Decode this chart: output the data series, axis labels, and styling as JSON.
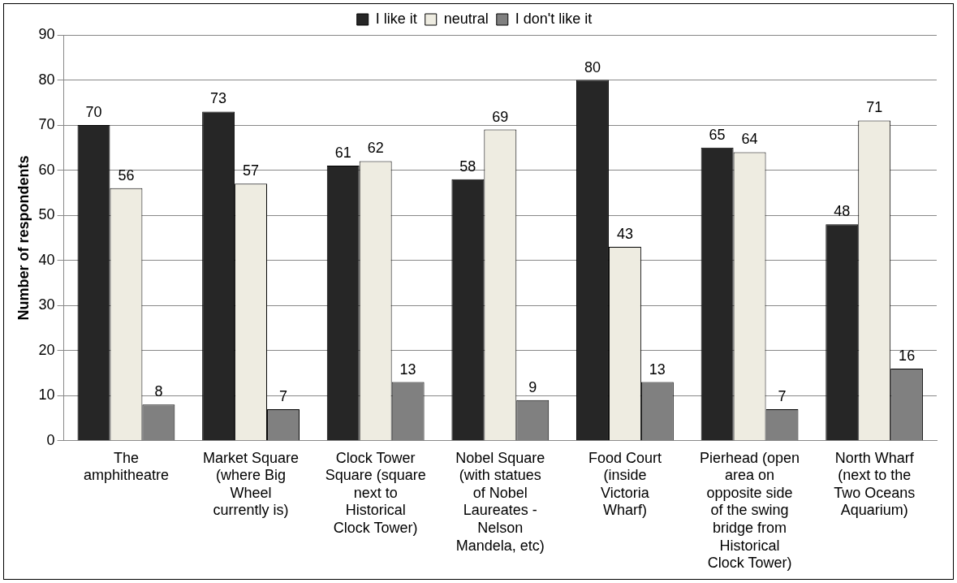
{
  "chart_data": {
    "type": "bar",
    "ylabel": "Number of respondents",
    "categories": [
      "The amphitheatre",
      "Market Square (where Big Wheel currently is)",
      "Clock Tower Square (square next to Historical Clock Tower)",
      "Nobel Square (with statues of Nobel Laureates - Nelson Mandela, etc)",
      "Food Court (inside Victoria Wharf)",
      "Pierhead (open area on opposite side of the swing bridge from Historical Clock Tower)",
      "North Wharf (next to the Two Oceans Aquarium)"
    ],
    "series": [
      {
        "name": "I like it",
        "color": "#262626",
        "values": [
          70,
          73,
          61,
          58,
          80,
          65,
          48
        ]
      },
      {
        "name": "neutral",
        "color": "#eeece1",
        "values": [
          56,
          57,
          62,
          69,
          43,
          64,
          71
        ]
      },
      {
        "name": "I don't like it",
        "color": "#808080",
        "values": [
          8,
          7,
          13,
          9,
          13,
          7,
          16
        ]
      }
    ],
    "ylim": [
      0,
      90
    ],
    "yticks": [
      0,
      10,
      20,
      30,
      40,
      50,
      60,
      70,
      80,
      90
    ],
    "grid": "y",
    "legend": "top",
    "data_labels": true
  }
}
